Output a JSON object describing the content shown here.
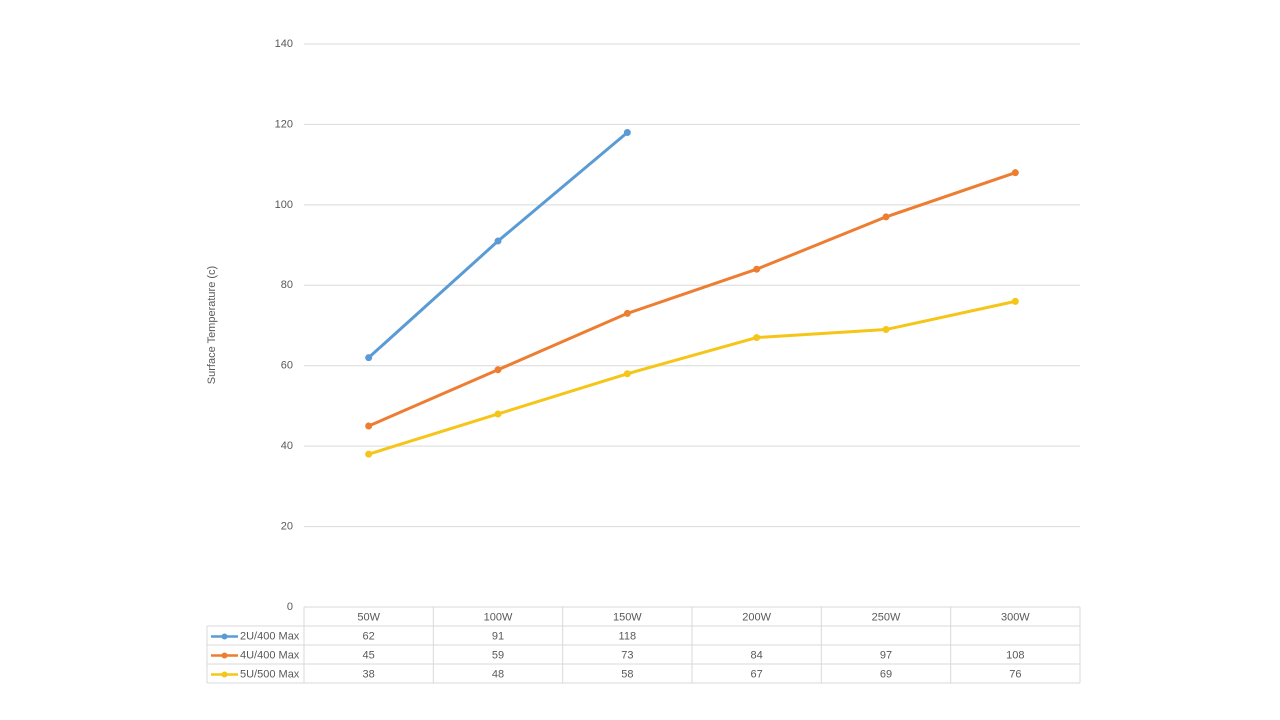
{
  "chart_data": {
    "type": "line",
    "y_label": "Surface Temperature (c)",
    "categories": [
      "50W",
      "100W",
      "150W",
      "200W",
      "250W",
      "300W"
    ],
    "series": [
      {
        "name": "2U/400 Max",
        "color": "#5b9bd5",
        "values": [
          62,
          91,
          118,
          null,
          null,
          null
        ]
      },
      {
        "name": "4U/400 Max",
        "color": "#ed7d31",
        "values": [
          45,
          59,
          73,
          84,
          97,
          108
        ]
      },
      {
        "name": "5U/500 Max",
        "color": "#f5c518",
        "values": [
          38,
          48,
          58,
          67,
          69,
          76
        ]
      }
    ],
    "ylim": [
      0,
      140
    ],
    "yticks": [
      0,
      20,
      40,
      60,
      80,
      100,
      120,
      140
    ],
    "grid": true,
    "data_table": true
  }
}
